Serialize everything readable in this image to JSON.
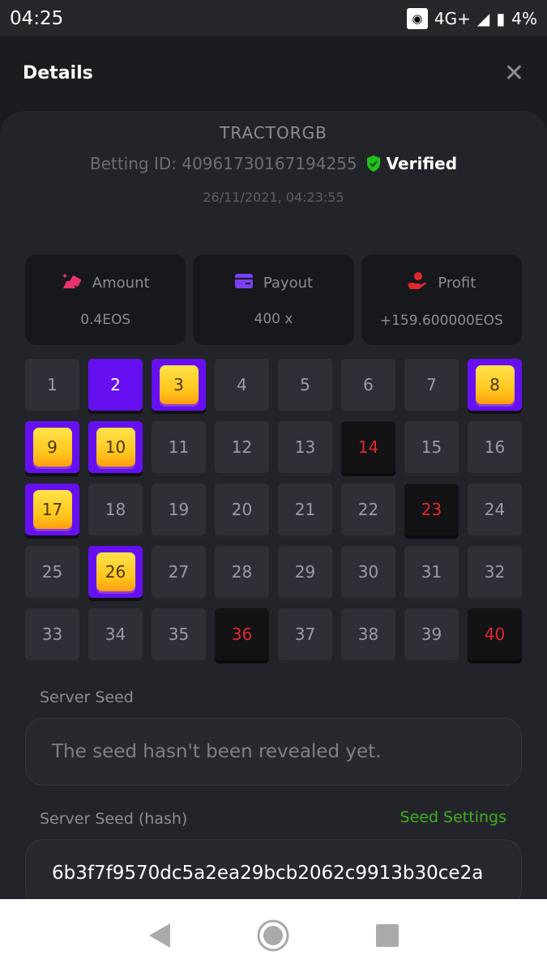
{
  "status_bar": {
    "time": "04:25",
    "network": "4G+",
    "battery": "4%"
  },
  "header": {
    "title": "Details",
    "close": "✕"
  },
  "bet": {
    "username": "TRACTORGB",
    "betting_id": "Betting ID: 40961730167194255",
    "verified": "Verified",
    "datetime": "26/11/2021, 04:23:55"
  },
  "stats": [
    {
      "label": "Amount",
      "value": "0.4EOS",
      "icon": "coins-icon",
      "color": "#e8336b"
    },
    {
      "label": "Payout",
      "value": "400 x",
      "icon": "card-icon",
      "color": "#7b3ff2"
    },
    {
      "label": "Profit",
      "value": "+159.600000EOS",
      "icon": "hand-user-icon",
      "color": "#e0282d"
    }
  ],
  "grid": {
    "selected": [
      2
    ],
    "gems": [
      3,
      8,
      9,
      10,
      17,
      26
    ],
    "misses": [
      14,
      23,
      36,
      40
    ]
  },
  "server_seed": {
    "label": "Server Seed",
    "value": "The seed hasn't been revealed yet."
  },
  "server_seed_hash": {
    "label": "Server Seed (hash)",
    "link": "Seed Settings",
    "value": "6b3f7f9570dc5a2ea29bcb2062c9913b30ce2a"
  },
  "colors": {
    "accent": "#6610f2",
    "verified": "#22c11d",
    "miss": "#e0282d",
    "link": "#3fae1e"
  }
}
